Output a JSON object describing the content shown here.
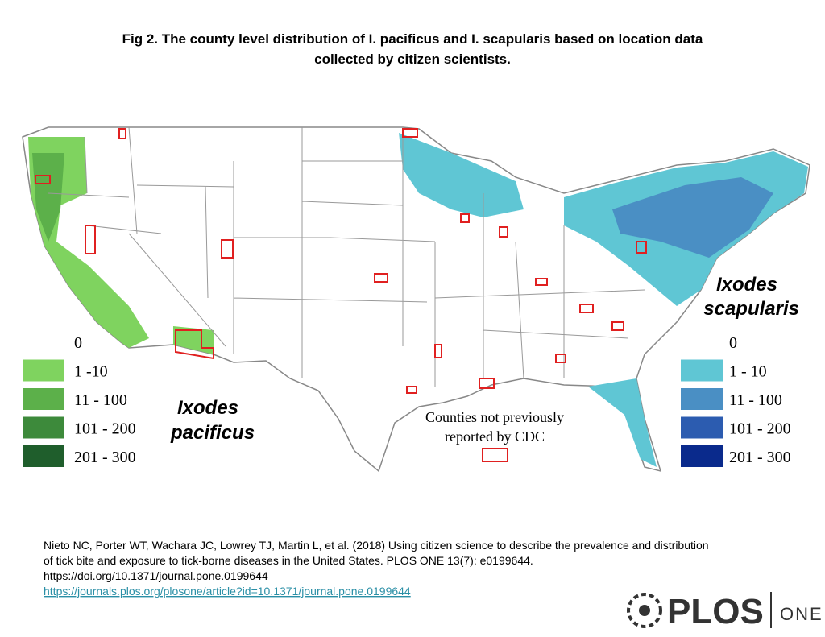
{
  "title": [
    "Fig 2. The county level distribution of I. pacificus and I. scapularis based on location data",
    "collected by citizen scientists."
  ],
  "pacificus": {
    "name": [
      "Ixodes",
      "pacificus"
    ],
    "legend": [
      {
        "label": "0",
        "color": "#ffffff"
      },
      {
        "label": "1 -10",
        "color": "#7fd35f"
      },
      {
        "label": "11 - 100",
        "color": "#5cb04a"
      },
      {
        "label": "101 - 200",
        "color": "#3d8a3b"
      },
      {
        "label": "201 - 300",
        "color": "#1f5e2c"
      }
    ]
  },
  "scapularis": {
    "name": [
      "Ixodes",
      "scapularis"
    ],
    "legend": [
      {
        "label": "0",
        "color": "#ffffff"
      },
      {
        "label": "1 - 10",
        "color": "#5fc6d4"
      },
      {
        "label": "11 - 100",
        "color": "#4a8fc4"
      },
      {
        "label": "101 - 200",
        "color": "#2c5cb0"
      },
      {
        "label": "201 - 300",
        "color": "#0a2a8c"
      }
    ]
  },
  "cdc_note": [
    "Counties not previously",
    "reported by CDC"
  ],
  "citation": [
    "Nieto NC, Porter WT, Wachara JC, Lowrey TJ, Martin L, et al. (2018) Using citizen science to describe the prevalence and distribution",
    "of tick bite and exposure to tick-borne diseases in the United States. PLOS ONE 13(7): e0199644.",
    "https://doi.org/10.1371/journal.pone.0199644"
  ],
  "link": "https://journals.plos.org/plosone/article?id=10.1371/journal.pone.0199644",
  "logo": {
    "brand": "PLOS",
    "journal": "ONE"
  }
}
